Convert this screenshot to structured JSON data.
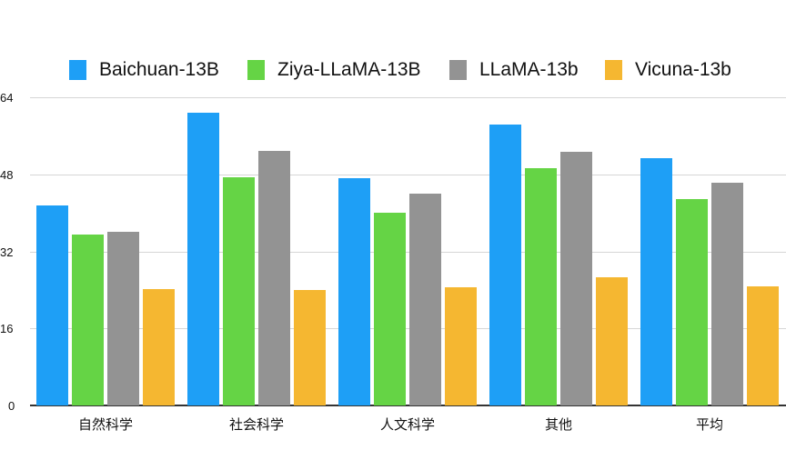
{
  "chart_data": {
    "type": "bar",
    "title": "",
    "xlabel": "",
    "ylabel": "",
    "ylim": [
      0,
      64
    ],
    "yticks": [
      0,
      16,
      32,
      48,
      64
    ],
    "grid": true,
    "legend_position": "top",
    "categories": [
      "自然科学",
      "社会科学",
      "人文科学",
      "其他",
      "平均"
    ],
    "series": [
      {
        "name": "Baichuan-13B",
        "color": "#1E9FF6",
        "values": [
          41.5,
          60.8,
          47.2,
          58.3,
          51.4
        ]
      },
      {
        "name": "Ziya-LLaMA-13B",
        "color": "#65D445",
        "values": [
          35.5,
          47.4,
          40.0,
          49.2,
          42.8
        ]
      },
      {
        "name": "LLaMA-13b",
        "color": "#939393",
        "values": [
          36.0,
          52.8,
          43.9,
          52.6,
          46.2
        ]
      },
      {
        "name": "Vicuna-13b",
        "color": "#F5B731",
        "values": [
          24.2,
          24.0,
          24.5,
          26.7,
          24.7
        ]
      }
    ]
  },
  "legend": {
    "items": [
      {
        "label": "Baichuan-13B",
        "color": "#1E9FF6"
      },
      {
        "label": "Ziya-LLaMA-13B",
        "color": "#65D445"
      },
      {
        "label": "LLaMA-13b",
        "color": "#939393"
      },
      {
        "label": "Vicuna-13b",
        "color": "#F5B731"
      }
    ]
  },
  "axis": {
    "y_labels": [
      "0",
      "16",
      "32",
      "48",
      "64"
    ],
    "x_labels": [
      "自然科学",
      "社会科学",
      "人文科学",
      "其他",
      "平均"
    ]
  }
}
